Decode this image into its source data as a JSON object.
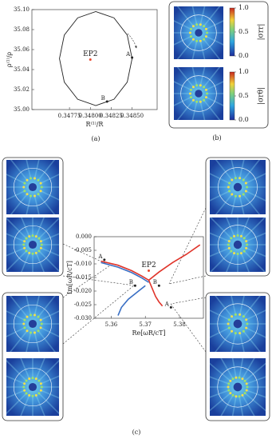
{
  "chart_data": [
    {
      "type": "line",
      "x_label": "R⁽¹⁾/R",
      "y_label": "ρ⁽¹⁾/ρ",
      "xlim": [
        0.3473,
        0.3488
      ],
      "ylim": [
        35.0,
        35.1
      ],
      "xticks": [
        0.34775,
        {
          "value": 0.348,
          "label": "0.34800"
        },
        0.34825,
        {
          "value": 0.3485,
          "label": "0.34850"
        }
      ],
      "yticks": [
        {
          "value": 35.0,
          "label": "35.00"
        },
        {
          "value": 35.02,
          "label": "35.02"
        },
        {
          "value": 35.04,
          "label": "35.04"
        },
        {
          "value": 35.06,
          "label": "35.06"
        },
        {
          "value": 35.08,
          "label": "35.08"
        },
        {
          "value": 35.1,
          "label": "35.10"
        }
      ],
      "series": [
        {
          "color": "#222222",
          "x": [
            0.3485,
            0.348442,
            0.348283,
            0.348065,
            0.347848,
            0.347688,
            0.34763,
            0.347688,
            0.347848,
            0.348065,
            0.348283,
            0.348442,
            0.3485
          ],
          "values": [
            35.051,
            35.0745,
            35.0917,
            35.098,
            35.0917,
            35.0745,
            35.051,
            35.0275,
            35.0103,
            35.004,
            35.0103,
            35.0275,
            35.051
          ]
        }
      ],
      "annotations": [
        {
          "text": "EP2",
          "x": 0.348,
          "y": 35.05,
          "color": "#e8452c"
        },
        {
          "text": "A",
          "x": 0.3485,
          "y": 35.052,
          "color": "#222222"
        },
        {
          "text": "B",
          "x": 0.3482,
          "y": 35.008,
          "color": "#222222"
        }
      ]
    },
    {
      "type": "line",
      "x_label": "Re[ωR/cT]",
      "y_label": "Im[ωR/cT]",
      "xlim": [
        5.355,
        5.387
      ],
      "ylim": [
        -0.03,
        0.0
      ],
      "xticks": [
        5.36,
        5.37,
        5.38
      ],
      "yticks": [
        {
          "value": 0.0,
          "label": "0.000"
        },
        -0.005,
        {
          "value": -0.01,
          "label": "-0.010"
        },
        -0.015,
        {
          "value": -0.02,
          "label": "-0.020"
        },
        -0.025,
        {
          "value": -0.03,
          "label": "-0.030"
        }
      ],
      "series": [
        {
          "color": "#e0342a",
          "x": [
            5.357,
            5.362,
            5.366,
            5.369,
            5.371,
            5.374,
            5.378,
            5.382,
            5.386
          ],
          "values": [
            -0.009,
            -0.0105,
            -0.0125,
            -0.0145,
            -0.016,
            -0.013,
            -0.0095,
            -0.0065,
            -0.003
          ]
        },
        {
          "color": "#e0342a",
          "x": [
            5.371,
            5.372,
            5.373,
            5.374,
            5.375
          ],
          "values": [
            -0.016,
            -0.019,
            -0.022,
            -0.024,
            -0.0255
          ]
        },
        {
          "color": "#3a6fc4",
          "x": [
            5.357,
            5.362,
            5.366,
            5.369,
            5.371
          ],
          "values": [
            -0.0095,
            -0.0112,
            -0.0132,
            -0.0152,
            -0.0168
          ]
        },
        {
          "color": "#3a6fc4",
          "x": [
            5.37,
            5.368,
            5.365,
            5.363,
            5.362
          ],
          "values": [
            -0.018,
            -0.02,
            -0.023,
            -0.026,
            -0.029
          ]
        }
      ],
      "annotations": [
        {
          "text": "A",
          "x": 5.358,
          "y": -0.0085,
          "color": "#222222"
        },
        {
          "text": "EP2",
          "x": 5.371,
          "y": -0.0125,
          "color": "#e8452c"
        },
        {
          "text": "B",
          "x": 5.367,
          "y": -0.018,
          "color": "#222222"
        },
        {
          "text": "B",
          "x": 5.374,
          "y": -0.018,
          "color": "#222222"
        },
        {
          "text": "A",
          "x": 5.3775,
          "y": -0.026,
          "color": "#222222"
        }
      ]
    }
  ],
  "figure": {
    "panel_labels": [
      "(a)",
      "(b)",
      "(c)"
    ],
    "colorbars": [
      {
        "label": "|σrr|",
        "ticks": [
          {
            "value": 0.0,
            "label": "0.0"
          },
          0.5,
          {
            "value": 1.0,
            "label": "1.0"
          }
        ]
      },
      {
        "label": "|σrθ|",
        "ticks": [
          {
            "value": 0.0,
            "label": "0.0"
          },
          0.5,
          {
            "value": 1.0,
            "label": "1.0"
          }
        ]
      }
    ]
  }
}
